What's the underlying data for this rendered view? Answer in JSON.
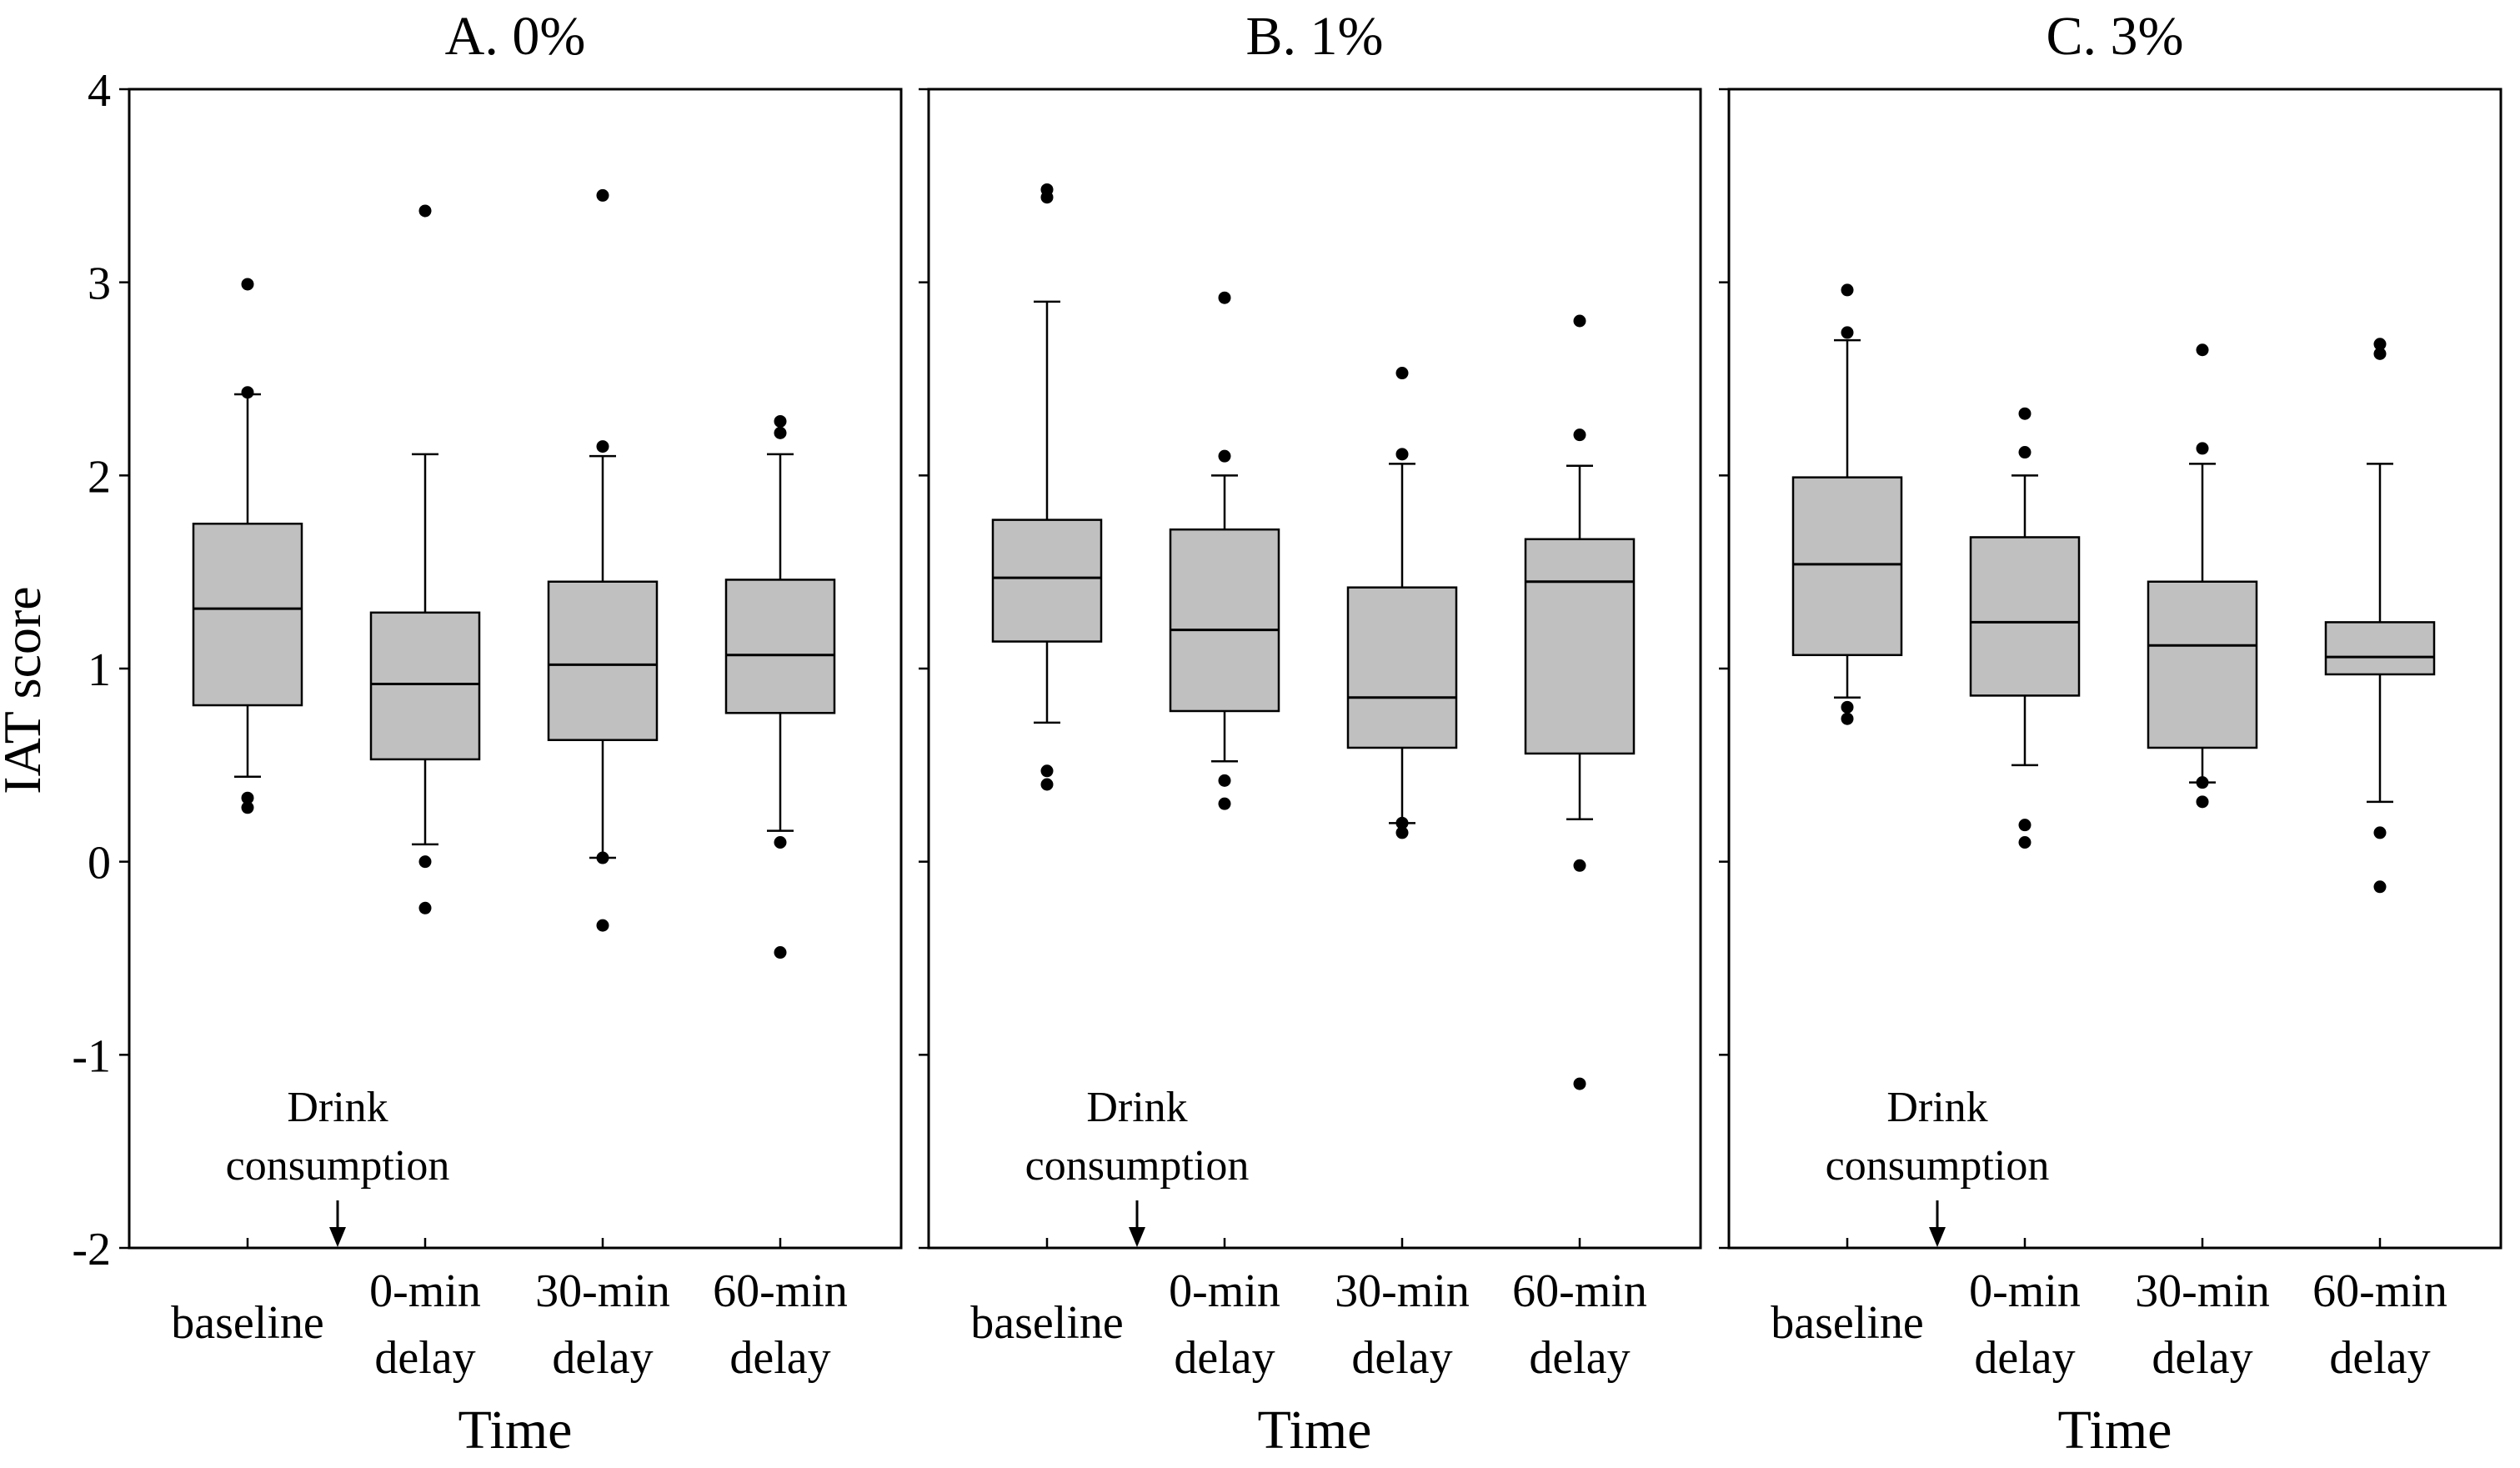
{
  "figure": {
    "ylabel": "IAT score",
    "xlabel": "Time",
    "annotation_line1": "Drink",
    "annotation_line2": "consumption",
    "colors": {
      "box_fill": "#c0c0c0",
      "stroke": "#000000",
      "background": "#ffffff"
    }
  },
  "chart_data": [
    {
      "type": "box",
      "title": "A. 0%",
      "xlabel": "Time",
      "ylabel": "IAT score",
      "ylim": [
        -2,
        4
      ],
      "yticks": [
        -2,
        -1,
        0,
        1,
        2,
        3,
        4
      ],
      "categories": [
        {
          "line1": "",
          "line2": "baseline"
        },
        {
          "line1": "0-min",
          "line2": "delay"
        },
        {
          "line1": "30-min",
          "line2": "delay"
        },
        {
          "line1": "60-min",
          "line2": "delay"
        }
      ],
      "boxes": [
        {
          "whisker_low": 0.44,
          "q1": 0.81,
          "median": 1.31,
          "q3": 1.75,
          "whisker_high": 2.42,
          "outliers": [
            0.28,
            0.33,
            2.43,
            2.99
          ]
        },
        {
          "whisker_low": 0.09,
          "q1": 0.53,
          "median": 0.92,
          "q3": 1.29,
          "whisker_high": 2.11,
          "outliers": [
            -0.24,
            0.0,
            3.37
          ]
        },
        {
          "whisker_low": 0.02,
          "q1": 0.63,
          "median": 1.02,
          "q3": 1.45,
          "whisker_high": 2.1,
          "outliers": [
            -0.33,
            0.02,
            2.15,
            3.45
          ]
        },
        {
          "whisker_low": 0.16,
          "q1": 0.77,
          "median": 1.07,
          "q3": 1.46,
          "whisker_high": 2.11,
          "outliers": [
            -0.47,
            0.1,
            2.22,
            2.28
          ]
        }
      ]
    },
    {
      "type": "box",
      "title": "B. 1%",
      "xlabel": "Time",
      "ylim": [
        -2,
        4
      ],
      "yticks": [
        -2,
        -1,
        0,
        1,
        2,
        3,
        4
      ],
      "categories": [
        {
          "line1": "",
          "line2": "baseline"
        },
        {
          "line1": "0-min",
          "line2": "delay"
        },
        {
          "line1": "30-min",
          "line2": "delay"
        },
        {
          "line1": "60-min",
          "line2": "delay"
        }
      ],
      "boxes": [
        {
          "whisker_low": 0.72,
          "q1": 1.14,
          "median": 1.47,
          "q3": 1.77,
          "whisker_high": 2.9,
          "outliers": [
            0.4,
            0.47,
            3.44,
            3.48
          ]
        },
        {
          "whisker_low": 0.52,
          "q1": 0.78,
          "median": 1.2,
          "q3": 1.72,
          "whisker_high": 2.0,
          "outliers": [
            0.3,
            0.42,
            2.1,
            2.92
          ]
        },
        {
          "whisker_low": 0.2,
          "q1": 0.59,
          "median": 0.85,
          "q3": 1.42,
          "whisker_high": 2.06,
          "outliers": [
            0.15,
            0.2,
            2.11,
            2.53
          ]
        },
        {
          "whisker_low": 0.22,
          "q1": 0.56,
          "median": 1.45,
          "q3": 1.67,
          "whisker_high": 2.05,
          "outliers": [
            -1.15,
            -0.02,
            2.21,
            2.8
          ]
        }
      ]
    },
    {
      "type": "box",
      "title": "C. 3%",
      "xlabel": "Time",
      "ylim": [
        -2,
        4
      ],
      "yticks": [
        -2,
        -1,
        0,
        1,
        2,
        3,
        4
      ],
      "categories": [
        {
          "line1": "",
          "line2": "baseline"
        },
        {
          "line1": "0-min",
          "line2": "delay"
        },
        {
          "line1": "30-min",
          "line2": "delay"
        },
        {
          "line1": "60-min",
          "line2": "delay"
        }
      ],
      "boxes": [
        {
          "whisker_low": 0.85,
          "q1": 1.07,
          "median": 1.54,
          "q3": 1.99,
          "whisker_high": 2.7,
          "outliers": [
            0.74,
            0.8,
            2.74,
            2.96
          ]
        },
        {
          "whisker_low": 0.5,
          "q1": 0.86,
          "median": 1.24,
          "q3": 1.68,
          "whisker_high": 2.0,
          "outliers": [
            0.1,
            0.19,
            2.12,
            2.32
          ]
        },
        {
          "whisker_low": 0.41,
          "q1": 0.59,
          "median": 1.12,
          "q3": 1.45,
          "whisker_high": 2.06,
          "outliers": [
            0.31,
            0.41,
            2.14,
            2.65
          ]
        },
        {
          "whisker_low": 0.31,
          "q1": 0.97,
          "median": 1.06,
          "q3": 1.24,
          "whisker_high": 2.06,
          "outliers": [
            -0.13,
            0.15,
            2.63,
            2.68
          ]
        }
      ]
    }
  ]
}
